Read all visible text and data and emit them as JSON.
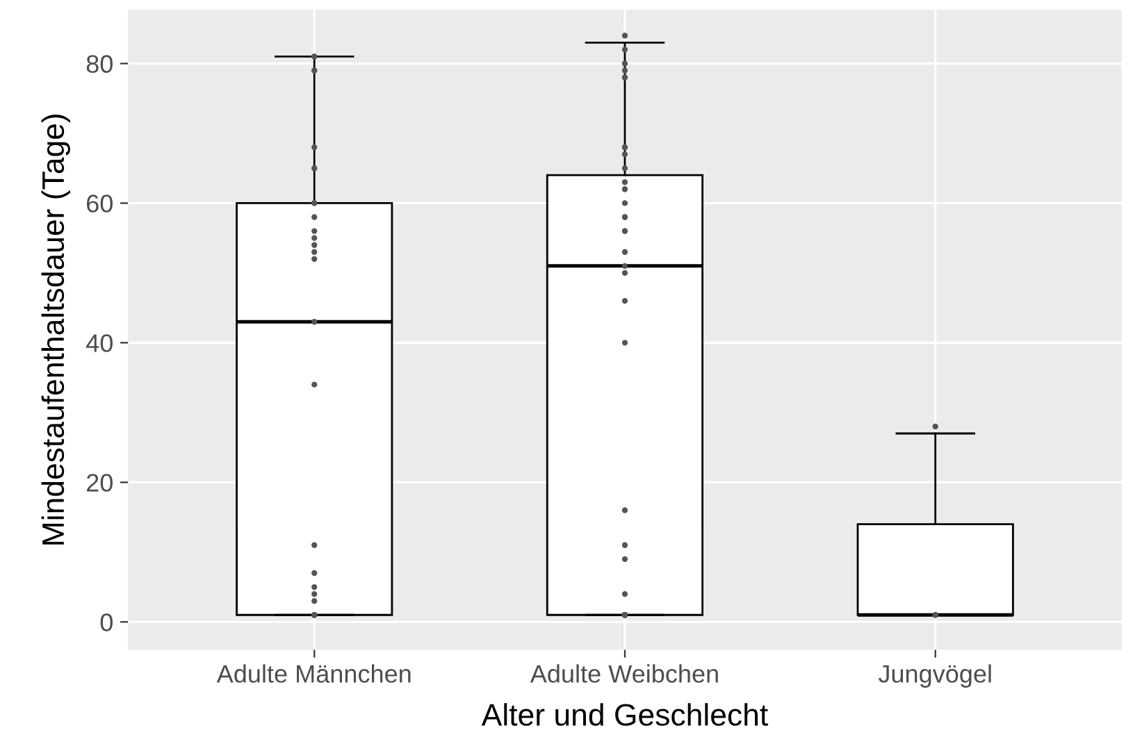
{
  "chart_data": {
    "type": "box",
    "xlabel": "Alter und Geschlecht",
    "ylabel": "Mindestaufenthaltsdauer (Tage)",
    "categories": [
      "Adulte Männchen",
      "Adulte Weibchen",
      "Jungvögel"
    ],
    "boxes": [
      {
        "low": 1,
        "q1": 1,
        "median": 43,
        "q3": 60,
        "high": 81
      },
      {
        "low": 1,
        "q1": 1,
        "median": 51,
        "q3": 64,
        "high": 83
      },
      {
        "low": 1,
        "q1": 1,
        "median": 1,
        "q3": 14,
        "high": 27
      }
    ],
    "series": [
      {
        "type": "scatter",
        "color": "#555555",
        "x": [
          "Adulte Männchen",
          "Adulte Männchen",
          "Adulte Männchen",
          "Adulte Männchen",
          "Adulte Männchen",
          "Adulte Männchen",
          "Adulte Männchen",
          "Adulte Männchen",
          "Adulte Männchen",
          "Adulte Männchen",
          "Adulte Männchen",
          "Adulte Männchen",
          "Adulte Männchen",
          "Adulte Männchen",
          "Adulte Männchen",
          "Adulte Männchen",
          "Adulte Männchen",
          "Adulte Männchen",
          "Adulte Männchen",
          "Adulte Männchen",
          "Adulte Männchen",
          "Adulte Männchen",
          "Adulte Männchen",
          "Adulte Männchen",
          "Adulte Männchen",
          "Adulte Männchen",
          "Adulte Weibchen",
          "Adulte Weibchen",
          "Adulte Weibchen",
          "Adulte Weibchen",
          "Adulte Weibchen",
          "Adulte Weibchen",
          "Adulte Weibchen",
          "Adulte Weibchen",
          "Adulte Weibchen",
          "Adulte Weibchen",
          "Adulte Weibchen",
          "Adulte Weibchen",
          "Adulte Weibchen",
          "Adulte Weibchen",
          "Adulte Weibchen",
          "Adulte Weibchen",
          "Adulte Weibchen",
          "Adulte Weibchen",
          "Adulte Weibchen",
          "Adulte Weibchen",
          "Adulte Weibchen",
          "Adulte Weibchen",
          "Adulte Weibchen",
          "Adulte Weibchen",
          "Adulte Weibchen",
          "Adulte Weibchen",
          "Adulte Weibchen",
          "Adulte Weibchen",
          "Adulte Weibchen",
          "Adulte Weibchen",
          "Adulte Weibchen",
          "Adulte Weibchen",
          "Adulte Weibchen",
          "Adulte Weibchen",
          "Adulte Weibchen",
          "Jungvögel",
          "Jungvögel",
          "Jungvögel"
        ],
        "values": [
          81,
          81,
          79,
          79,
          68,
          65,
          65,
          60,
          60,
          58,
          56,
          55,
          54,
          53,
          52,
          43,
          34,
          11,
          7,
          5,
          4,
          3,
          1,
          1,
          1,
          1,
          84,
          82,
          80,
          79,
          78,
          78,
          68,
          68,
          67,
          65,
          63,
          62,
          62,
          60,
          58,
          58,
          56,
          56,
          53,
          51,
          50,
          46,
          40,
          16,
          11,
          9,
          4,
          1,
          1,
          1,
          1,
          1,
          1,
          1,
          1,
          28,
          1,
          1
        ]
      }
    ],
    "ylim": [
      -4,
      87.7
    ],
    "yticks": [
      0,
      20,
      40,
      60,
      80
    ],
    "grid": true
  }
}
